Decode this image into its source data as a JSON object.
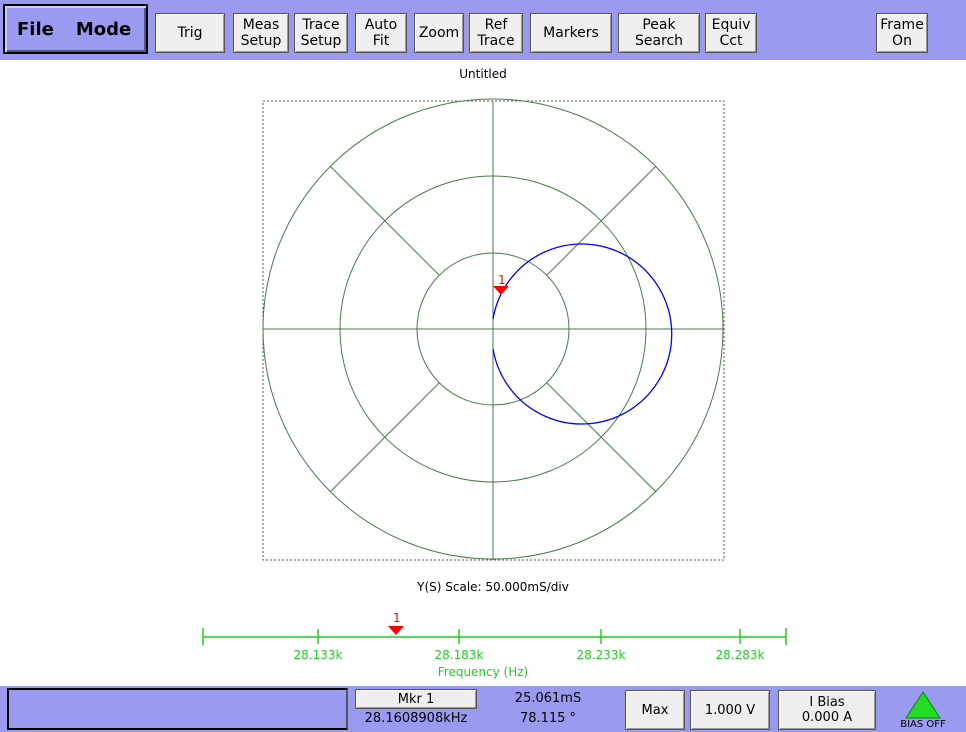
{
  "toolbar": {
    "file": "File",
    "mode": "Mode",
    "trig": "Trig",
    "meas_setup": "Meas\nSetup",
    "trace_setup": "Trace\nSetup",
    "auto_fit": "Auto\nFit",
    "zoom": "Zoom",
    "ref_trace": "Ref\nTrace",
    "markers": "Markers",
    "peak_search": "Peak\nSearch",
    "equiv_cct": "Equiv\nCct",
    "frame_on": "Frame\nOn"
  },
  "plot": {
    "title": "Untitled",
    "scale_text": "Y(S) Scale:  50.000mS/div",
    "marker_label": "1",
    "grid_color": "#4a7a4a",
    "trace_color": "#0000ff",
    "marker_color": "#ff0000"
  },
  "frequency_axis": {
    "ticks": [
      "28.133k",
      "28.183k",
      "28.233k",
      "28.283k"
    ],
    "label": "Frequency (Hz)",
    "marker_label": "1",
    "color": "#22cc22"
  },
  "status": {
    "mkr_button": "Mkr 1",
    "mkr_freq": "28.1608908kHz",
    "mkr_mag": "25.061mS",
    "mkr_phase": "78.115 °",
    "max_button": "Max",
    "voltage_button": "1.000 V",
    "ibias_button": "I Bias\n0.000 A",
    "bias_status": "BIAS OFF"
  }
}
